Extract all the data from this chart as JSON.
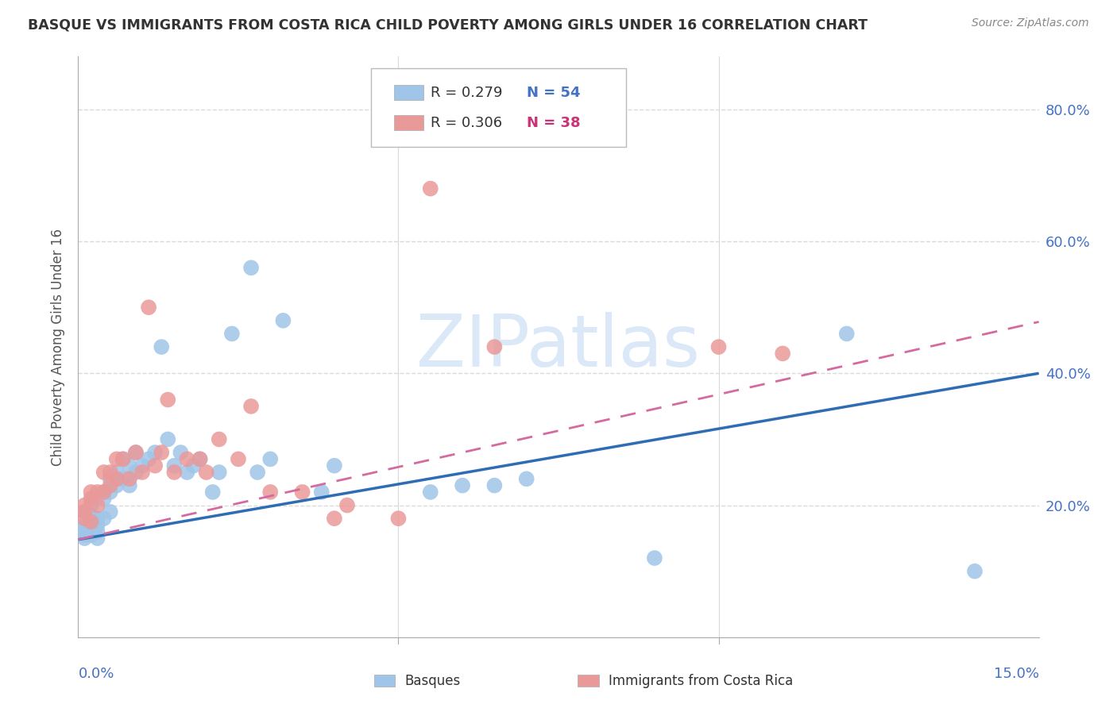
{
  "title": "BASQUE VS IMMIGRANTS FROM COSTA RICA CHILD POVERTY AMONG GIRLS UNDER 16 CORRELATION CHART",
  "source": "Source: ZipAtlas.com",
  "ylabel": "Child Poverty Among Girls Under 16",
  "ytick_labels": [
    "20.0%",
    "40.0%",
    "60.0%",
    "80.0%"
  ],
  "ytick_values": [
    0.2,
    0.4,
    0.6,
    0.8
  ],
  "xmin": 0.0,
  "xmax": 0.15,
  "ymin": 0.0,
  "ymax": 0.88,
  "legend_label1": "Basques",
  "legend_label2": "Immigrants from Costa Rica",
  "blue_scatter_color": "#9fc5e8",
  "pink_scatter_color": "#ea9999",
  "blue_line_color": "#2e6db4",
  "pink_line_color": "#d46a9f",
  "watermark_color": "#dae8f8",
  "background_color": "#ffffff",
  "grid_color": "#d9d9d9",
  "basques_x": [
    0.001,
    0.001,
    0.001,
    0.001,
    0.001,
    0.002,
    0.002,
    0.002,
    0.002,
    0.002,
    0.003,
    0.003,
    0.003,
    0.003,
    0.004,
    0.004,
    0.004,
    0.005,
    0.005,
    0.005,
    0.006,
    0.006,
    0.007,
    0.007,
    0.008,
    0.008,
    0.009,
    0.009,
    0.01,
    0.011,
    0.012,
    0.013,
    0.014,
    0.015,
    0.016,
    0.017,
    0.018,
    0.019,
    0.021,
    0.022,
    0.024,
    0.027,
    0.028,
    0.03,
    0.032,
    0.038,
    0.04,
    0.055,
    0.06,
    0.065,
    0.07,
    0.09,
    0.12,
    0.14
  ],
  "basques_y": [
    0.19,
    0.17,
    0.165,
    0.155,
    0.15,
    0.2,
    0.185,
    0.175,
    0.165,
    0.155,
    0.18,
    0.17,
    0.16,
    0.15,
    0.22,
    0.21,
    0.18,
    0.24,
    0.22,
    0.19,
    0.25,
    0.23,
    0.27,
    0.24,
    0.26,
    0.23,
    0.28,
    0.25,
    0.26,
    0.27,
    0.28,
    0.44,
    0.3,
    0.26,
    0.28,
    0.25,
    0.26,
    0.27,
    0.22,
    0.25,
    0.46,
    0.56,
    0.25,
    0.27,
    0.48,
    0.22,
    0.26,
    0.22,
    0.23,
    0.23,
    0.24,
    0.12,
    0.46,
    0.1
  ],
  "costarica_x": [
    0.001,
    0.001,
    0.001,
    0.002,
    0.002,
    0.002,
    0.003,
    0.003,
    0.004,
    0.004,
    0.005,
    0.005,
    0.006,
    0.006,
    0.007,
    0.008,
    0.009,
    0.01,
    0.011,
    0.012,
    0.013,
    0.014,
    0.015,
    0.017,
    0.019,
    0.02,
    0.022,
    0.025,
    0.027,
    0.03,
    0.035,
    0.04,
    0.042,
    0.05,
    0.055,
    0.065,
    0.1,
    0.11
  ],
  "costarica_y": [
    0.2,
    0.19,
    0.18,
    0.22,
    0.21,
    0.175,
    0.22,
    0.2,
    0.25,
    0.22,
    0.25,
    0.23,
    0.27,
    0.24,
    0.27,
    0.24,
    0.28,
    0.25,
    0.5,
    0.26,
    0.28,
    0.36,
    0.25,
    0.27,
    0.27,
    0.25,
    0.3,
    0.27,
    0.35,
    0.22,
    0.22,
    0.18,
    0.2,
    0.18,
    0.68,
    0.44,
    0.44,
    0.43
  ]
}
